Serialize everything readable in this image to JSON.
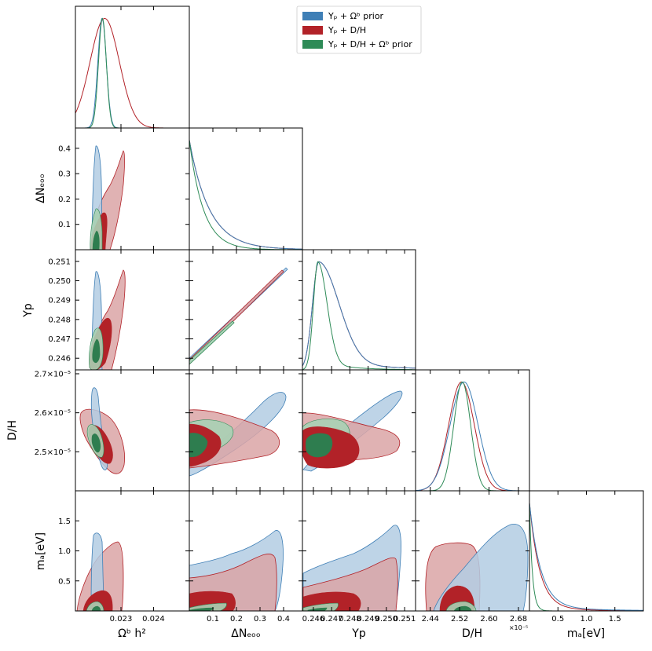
{
  "chart_data": {
    "type": "triangle",
    "legend": {
      "placement": "top-right",
      "entries": [
        {
          "label": "Yₚ + Ωᵇ prior",
          "color": "#3f7fb6"
        },
        {
          "label": "Yₚ + D/H",
          "color": "#b22228"
        },
        {
          "label": "Yₚ + D/H + Ωᵇ prior",
          "color": "#2e8b57"
        }
      ]
    },
    "colors": {
      "prior": {
        "line": "#3f7fb6",
        "fill68": "#8fb6d9",
        "fill95": "#b3cde3"
      },
      "dh": {
        "line": "#b22228",
        "fill68": "#b22228",
        "fill95": "#dba4a6"
      },
      "combined": {
        "line": "#2e8b57",
        "fill68": "#2e7d4f",
        "fill95": "#a9d0b4"
      }
    },
    "parameters": [
      {
        "name": "omegab",
        "label": "Ωᵇ h²",
        "range": [
          0.0216,
          0.0251
        ],
        "ticks": [
          0.023,
          0.024
        ],
        "tick_labels": [
          "0.023",
          "0.024"
        ]
      },
      {
        "name": "dneff",
        "label": "ΔNₑₒₒ",
        "range": [
          0.0,
          0.48
        ],
        "ticks": [
          0.1,
          0.2,
          0.3,
          0.4
        ],
        "tick_labels": [
          "0.1",
          "0.2",
          "0.3",
          "0.4"
        ]
      },
      {
        "name": "yp",
        "label": "Yp",
        "range": [
          0.2454,
          0.2516
        ],
        "ticks": [
          0.246,
          0.247,
          0.248,
          0.249,
          0.25,
          0.251
        ],
        "tick_labels": [
          "0.246",
          "0.247",
          "0.248",
          "0.249",
          "0.250",
          "0.251"
        ]
      },
      {
        "name": "dh",
        "label": "D/H",
        "range": [
          2.4,
          2.71
        ],
        "ticks": [
          2.44,
          2.52,
          2.6,
          2.68
        ],
        "tick_labels": [
          "2.44",
          "2.52",
          "2.60",
          "2.68"
        ],
        "y_tick_labels": [
          "2.5×10⁻⁵",
          "2.6×10⁻⁵",
          "2.7×10⁻⁵"
        ],
        "y_ticks": [
          2.5,
          2.6,
          2.7
        ],
        "offset_label": "×10⁻⁵"
      },
      {
        "name": "ma",
        "label": "mₐ[eV]",
        "range": [
          0.0,
          2.0
        ],
        "ticks": [
          0.5,
          1.0,
          1.5
        ],
        "tick_labels": [
          "0.5",
          "1.0",
          "1.5"
        ]
      }
    ],
    "marginals": {
      "omegab": {
        "prior": {
          "mean": 0.02242,
          "sd": 0.00013
        },
        "dh": {
          "mean": 0.0225,
          "sd": 0.00045
        },
        "combined": {
          "mean": 0.02243,
          "sd": 0.00012
        }
      },
      "dneff": {
        "kind": "decay",
        "prior": {
          "scale": 0.085,
          "tail": 0.006
        },
        "dh": {
          "scale": 0.085,
          "tail": 0.006
        },
        "combined": {
          "scale": 0.06,
          "tail": 0.0
        }
      },
      "yp": {
        "kind": "skew",
        "prior": {
          "peak": 0.2463,
          "left": 0.00035,
          "right": 0.0011
        },
        "dh": {
          "peak": 0.2463,
          "left": 0.00035,
          "right": 0.0011
        },
        "combined": {
          "peak": 0.24625,
          "left": 0.00025,
          "right": 0.0005
        }
      },
      "dh": {
        "prior": {
          "mean": 2.532,
          "sd": 0.038
        },
        "dh": {
          "mean": 2.525,
          "sd": 0.035
        },
        "combined": {
          "mean": 2.527,
          "sd": 0.023
        }
      },
      "ma": {
        "kind": "decay",
        "prior": {
          "scale": 0.2,
          "tail": 0.03
        },
        "dh": {
          "scale": 0.18,
          "tail": 0.02
        },
        "combined": {
          "scale": 0.05,
          "tail": 0.0
        }
      }
    }
  }
}
